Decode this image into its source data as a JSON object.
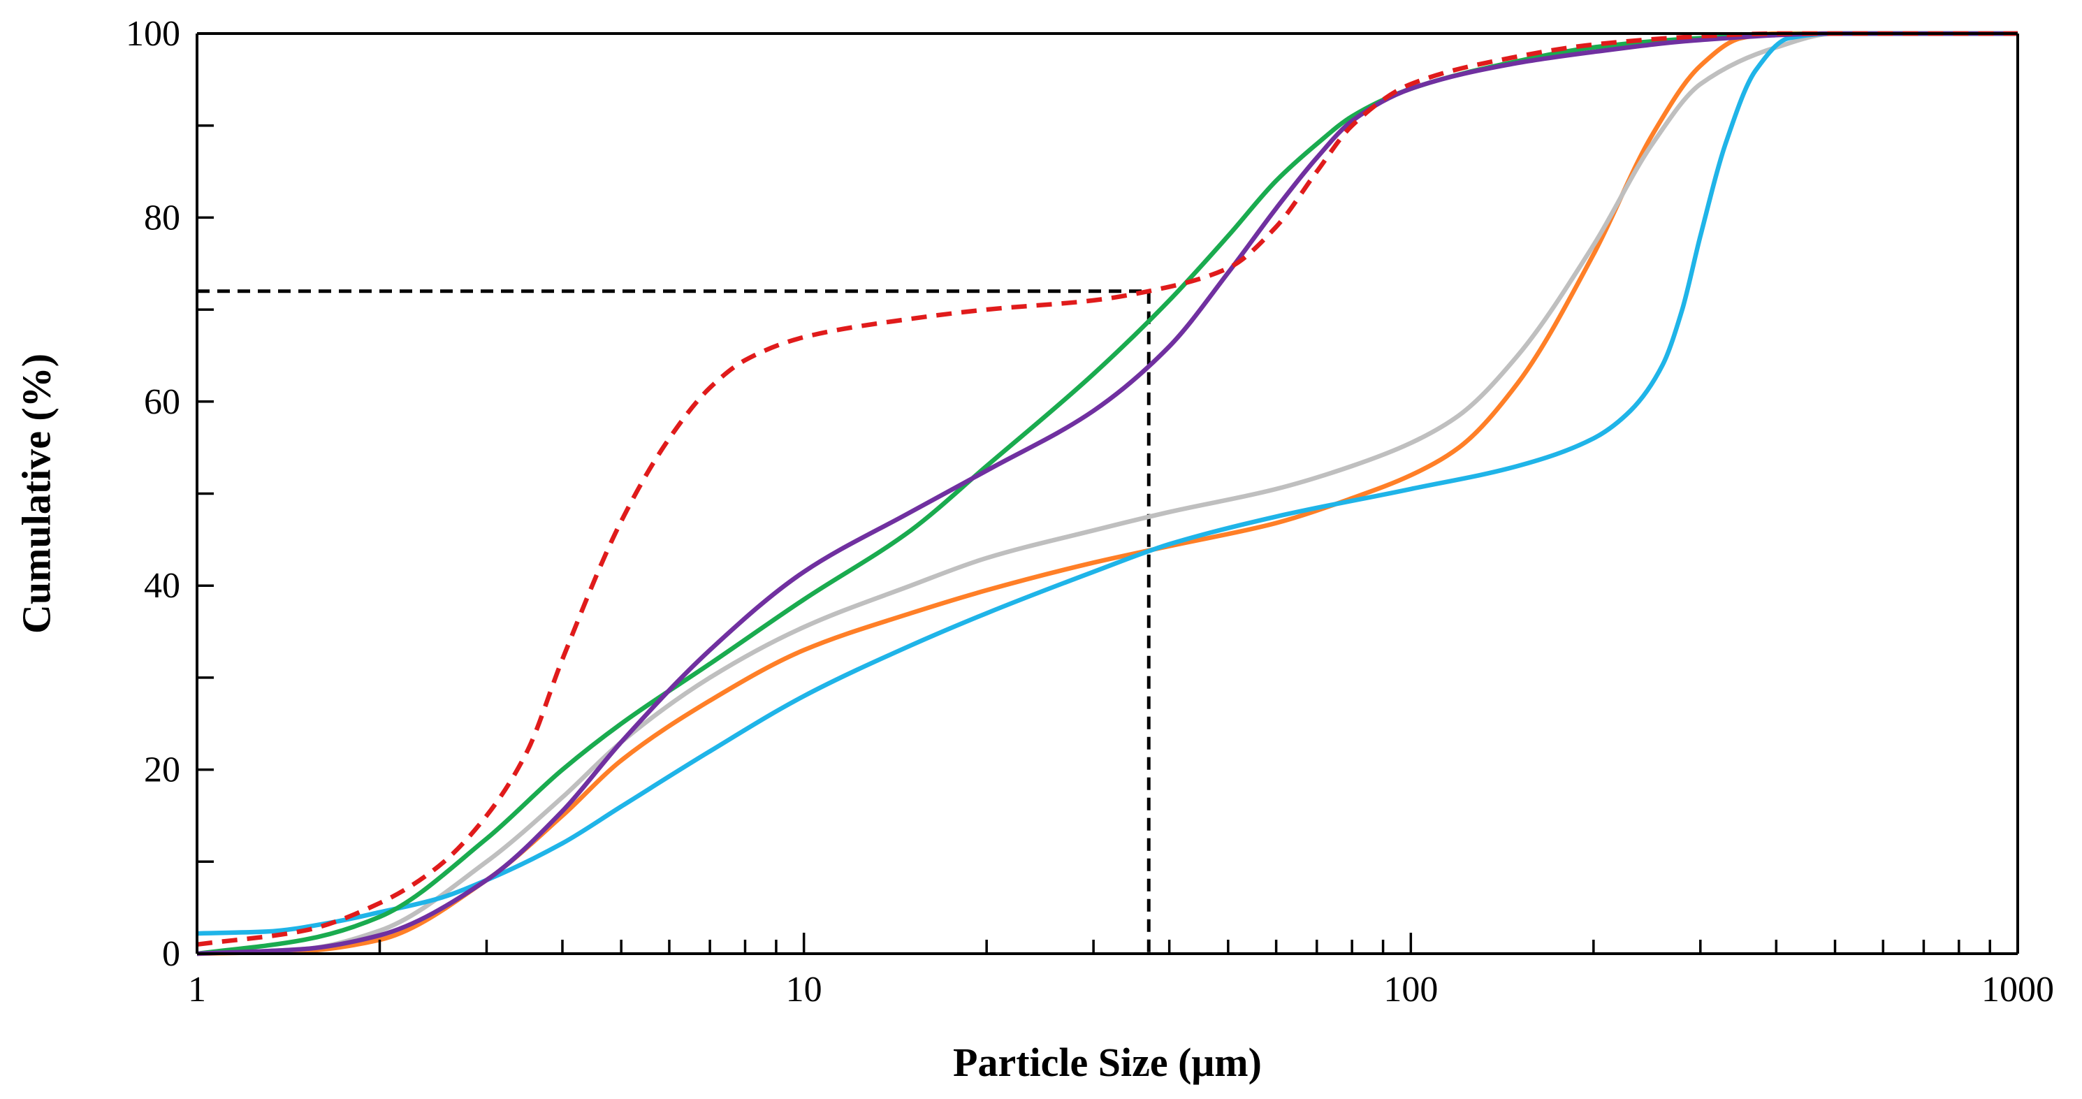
{
  "chart_data": {
    "type": "line",
    "xlabel": "Particle Size (μm)",
    "ylabel": "Cumulative (%)",
    "xscale": "log",
    "xlim": [
      1,
      1000
    ],
    "ylim": [
      0,
      100
    ],
    "x_ticks": [
      "1",
      "10",
      "100",
      "1000"
    ],
    "y_ticks": [
      "0",
      "20",
      "40",
      "60",
      "80",
      "100"
    ],
    "grid": false,
    "legend": "none",
    "reference_lines": {
      "x": 37,
      "y": 72,
      "color": "#000000",
      "style": "dashed"
    },
    "series": [
      {
        "color": "#ff7f27",
        "style": "solid",
        "points": [
          [
            1,
            0
          ],
          [
            1.5,
            0.3
          ],
          [
            2,
            1.5
          ],
          [
            3,
            8
          ],
          [
            4,
            15
          ],
          [
            5,
            21
          ],
          [
            7,
            27.5
          ],
          [
            10,
            33
          ],
          [
            15,
            37
          ],
          [
            20,
            39.5
          ],
          [
            30,
            42.5
          ],
          [
            40,
            44.3
          ],
          [
            60,
            46.8
          ],
          [
            80,
            49.5
          ],
          [
            100,
            52
          ],
          [
            120,
            55
          ],
          [
            150,
            62
          ],
          [
            200,
            76
          ],
          [
            250,
            89
          ],
          [
            300,
            96.5
          ],
          [
            350,
            99.5
          ],
          [
            400,
            100
          ],
          [
            1000,
            100
          ]
        ]
      },
      {
        "color": "#bfbfbf",
        "style": "solid",
        "points": [
          [
            1,
            0
          ],
          [
            1.5,
            0.5
          ],
          [
            2,
            2.5
          ],
          [
            3,
            10
          ],
          [
            4,
            17
          ],
          [
            5,
            23
          ],
          [
            7,
            30
          ],
          [
            10,
            35.5
          ],
          [
            15,
            40
          ],
          [
            20,
            43
          ],
          [
            30,
            46
          ],
          [
            40,
            48
          ],
          [
            60,
            50.5
          ],
          [
            80,
            53
          ],
          [
            100,
            55.5
          ],
          [
            120,
            58.5
          ],
          [
            150,
            65
          ],
          [
            200,
            77
          ],
          [
            250,
            88
          ],
          [
            300,
            94.5
          ],
          [
            400,
            98.5
          ],
          [
            500,
            100
          ],
          [
            1000,
            100
          ]
        ]
      },
      {
        "color": "#1fb4e8",
        "style": "solid",
        "points": [
          [
            1,
            2.2
          ],
          [
            1.3,
            2.4
          ],
          [
            1.7,
            3.5
          ],
          [
            2,
            4.5
          ],
          [
            2.5,
            6
          ],
          [
            3,
            8
          ],
          [
            4,
            12
          ],
          [
            5,
            16
          ],
          [
            7,
            22
          ],
          [
            10,
            28
          ],
          [
            15,
            33.5
          ],
          [
            20,
            37
          ],
          [
            30,
            41.5
          ],
          [
            40,
            44.5
          ],
          [
            60,
            47.5
          ],
          [
            100,
            50.5
          ],
          [
            150,
            53
          ],
          [
            200,
            56
          ],
          [
            230,
            59
          ],
          [
            260,
            64
          ],
          [
            280,
            70
          ],
          [
            300,
            78
          ],
          [
            330,
            88
          ],
          [
            370,
            96
          ],
          [
            420,
            99.5
          ],
          [
            500,
            100
          ],
          [
            1000,
            100
          ]
        ]
      },
      {
        "color": "#1aab4f",
        "style": "solid",
        "points": [
          [
            1,
            0
          ],
          [
            1.5,
            1.5
          ],
          [
            2,
            4
          ],
          [
            3,
            12.5
          ],
          [
            4,
            20
          ],
          [
            5,
            25
          ],
          [
            7,
            31.5
          ],
          [
            10,
            38.5
          ],
          [
            15,
            46
          ],
          [
            20,
            53
          ],
          [
            30,
            63
          ],
          [
            40,
            71
          ],
          [
            50,
            78
          ],
          [
            60,
            84
          ],
          [
            70,
            88
          ],
          [
            80,
            91
          ],
          [
            100,
            94
          ],
          [
            150,
            97
          ],
          [
            200,
            98.5
          ],
          [
            300,
            99.5
          ],
          [
            500,
            100
          ],
          [
            1000,
            100
          ]
        ]
      },
      {
        "color": "#7030a0",
        "style": "solid",
        "points": [
          [
            1,
            0
          ],
          [
            1.5,
            0.5
          ],
          [
            2,
            2
          ],
          [
            3,
            8
          ],
          [
            4,
            15.5
          ],
          [
            5,
            23
          ],
          [
            7,
            33
          ],
          [
            10,
            41.5
          ],
          [
            15,
            48
          ],
          [
            20,
            52.5
          ],
          [
            30,
            59
          ],
          [
            40,
            66
          ],
          [
            50,
            74
          ],
          [
            60,
            81
          ],
          [
            70,
            86.5
          ],
          [
            80,
            90.5
          ],
          [
            100,
            94
          ],
          [
            150,
            96.8
          ],
          [
            200,
            98
          ],
          [
            300,
            99.3
          ],
          [
            500,
            100
          ],
          [
            1000,
            100
          ]
        ]
      },
      {
        "color": "#e01b1b",
        "style": "dashed",
        "points": [
          [
            1,
            1
          ],
          [
            1.5,
            2.5
          ],
          [
            2,
            5.5
          ],
          [
            2.5,
            9.5
          ],
          [
            3,
            15
          ],
          [
            3.5,
            22
          ],
          [
            4,
            32
          ],
          [
            5,
            47
          ],
          [
            6,
            56
          ],
          [
            7,
            61.5
          ],
          [
            8,
            64.5
          ],
          [
            10,
            67
          ],
          [
            15,
            69
          ],
          [
            20,
            70
          ],
          [
            30,
            71
          ],
          [
            37,
            72
          ],
          [
            50,
            74.5
          ],
          [
            60,
            79
          ],
          [
            70,
            85
          ],
          [
            80,
            90
          ],
          [
            100,
            94.5
          ],
          [
            150,
            97.5
          ],
          [
            200,
            98.8
          ],
          [
            300,
            99.7
          ],
          [
            400,
            100
          ],
          [
            1000,
            100
          ]
        ]
      }
    ]
  }
}
